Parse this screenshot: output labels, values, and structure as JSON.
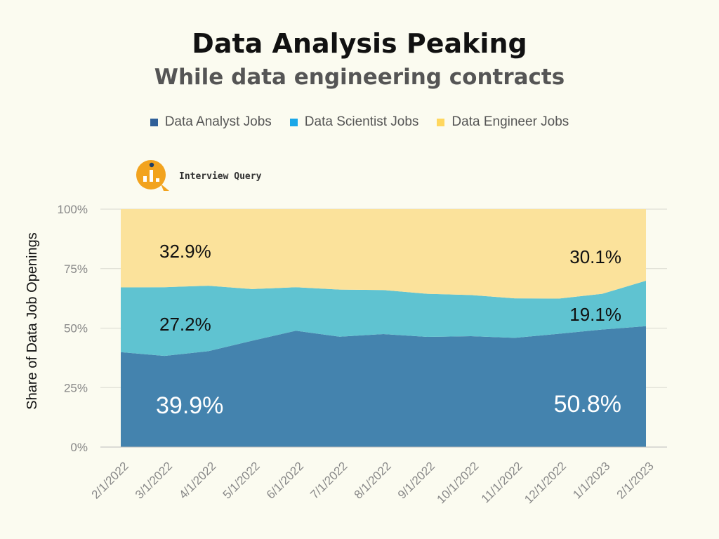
{
  "header": {
    "title": "Data Analysis Peaking",
    "subtitle": "While data engineering contracts"
  },
  "brand": {
    "name": "Interview Query"
  },
  "colors": {
    "analyst": "#4483ae",
    "scientist": "#5fc3d1",
    "engineer": "#fbe29b",
    "analyst_legend": "#2f5f98",
    "scientist_legend": "#1aa7e8",
    "engineer_legend": "#ffd75e",
    "logo": "#f2a31e"
  },
  "chart_data": {
    "type": "area",
    "stacked": true,
    "title": "Data Analysis Peaking",
    "subtitle": "While data engineering contracts",
    "xlabel": "",
    "ylabel": "Share of Data Job Openings",
    "ylim": [
      0,
      100
    ],
    "yticks": [
      "0%",
      "25%",
      "50%",
      "75%",
      "100%"
    ],
    "categories": [
      "2/1/2022",
      "3/1/2022",
      "4/1/2022",
      "5/1/2022",
      "6/1/2022",
      "7/1/2022",
      "8/1/2022",
      "9/1/2022",
      "10/1/2022",
      "11/1/2022",
      "12/1/2022",
      "1/1/2023",
      "2/1/2023"
    ],
    "series": [
      {
        "name": "Data Analyst Jobs",
        "values": [
          39.9,
          38.3,
          40.3,
          44.7,
          48.9,
          46.4,
          47.5,
          46.3,
          46.6,
          45.9,
          47.6,
          49.4,
          50.8
        ]
      },
      {
        "name": "Data Scientist Jobs",
        "values": [
          27.2,
          28.9,
          27.5,
          21.7,
          18.3,
          19.8,
          18.5,
          18.1,
          17.3,
          16.6,
          14.8,
          15.0,
          19.1
        ]
      },
      {
        "name": "Data Engineer Jobs",
        "values": [
          32.9,
          32.8,
          32.2,
          33.6,
          32.8,
          33.8,
          34.0,
          35.6,
          36.1,
          37.5,
          37.6,
          35.6,
          30.1
        ]
      }
    ],
    "annotations": {
      "engineer_start": "32.9%",
      "engineer_end": "30.1%",
      "scientist_start": "27.2%",
      "scientist_end": "19.1%",
      "analyst_start": "39.9%",
      "analyst_end": "50.8%"
    },
    "legend_position": "top-center"
  }
}
